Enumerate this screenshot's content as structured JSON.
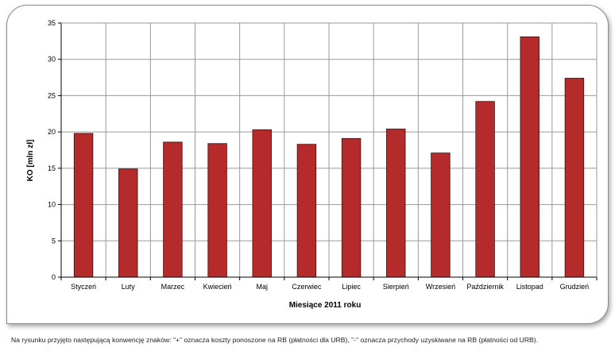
{
  "chart_data": {
    "type": "bar",
    "categories": [
      "Styczeń",
      "Luty",
      "Marzec",
      "Kwiecień",
      "Maj",
      "Czerwiec",
      "Lipiec",
      "Sierpień",
      "Wrzesień",
      "Październik",
      "Listopad",
      "Grudzień"
    ],
    "values": [
      19.8,
      14.9,
      18.6,
      18.4,
      20.3,
      18.3,
      19.1,
      20.4,
      17.1,
      24.2,
      33.1,
      27.4
    ],
    "title": "",
    "xlabel": "Miesiące 2011  roku",
    "ylabel": "KO [mln zł]",
    "ylim": [
      0,
      35
    ],
    "yticks": [
      0,
      5,
      10,
      15,
      20,
      25,
      30,
      35
    ],
    "grid": true,
    "bar_color": "#b52b2b"
  },
  "footnote": "Na rysunku przyjęto następującą konwencję znaków: \"+\" oznacza koszty ponoszone na RB (płatności dla URB), \"-\" oznacza przychody uzyskiwane na RB (płatności od URB)."
}
